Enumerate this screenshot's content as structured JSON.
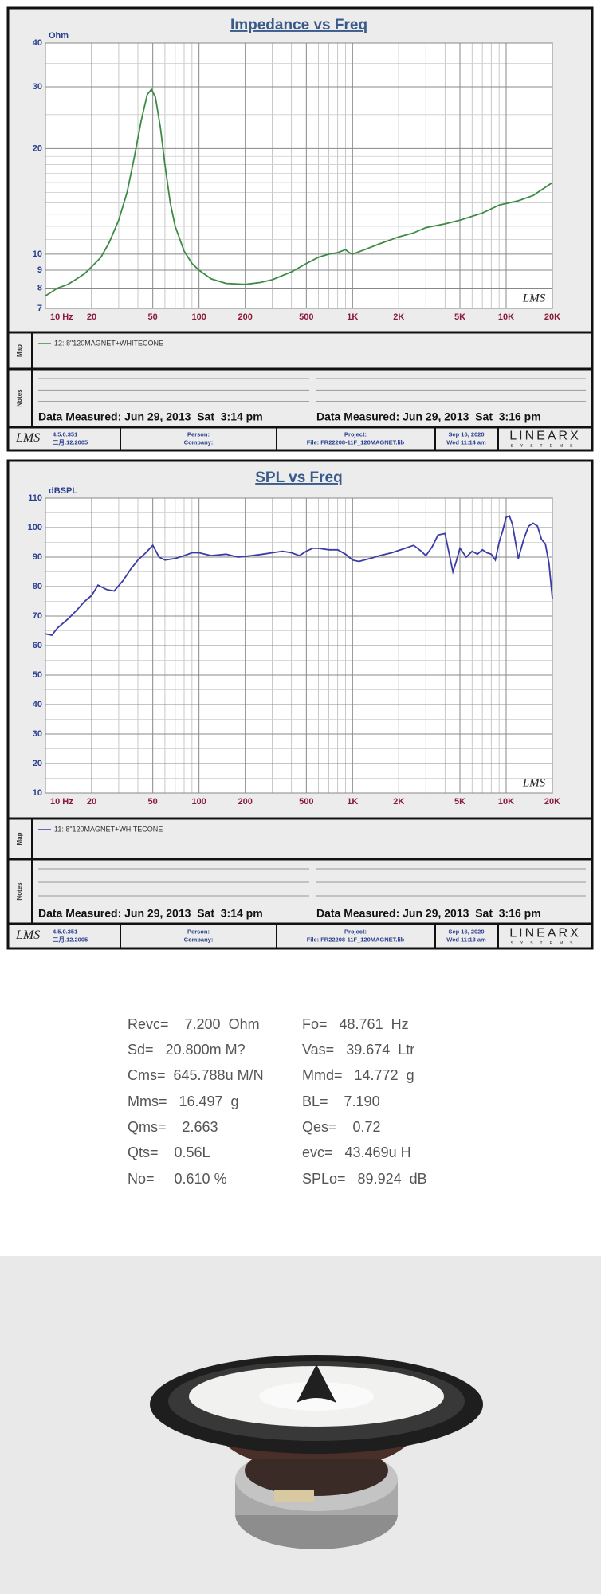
{
  "chart_data": [
    {
      "type": "line",
      "title": "Impedance vs Freq",
      "y_unit": "Ohm",
      "watermark": "LMS",
      "xscale": "log",
      "yscale": "log",
      "grid": true,
      "xlim": [
        10,
        20000
      ],
      "ylim": [
        7,
        40
      ],
      "xticks": [
        {
          "value": 10,
          "label": "10  Hz"
        },
        20,
        50,
        100,
        200,
        500,
        {
          "value": 1000,
          "label": "1K"
        },
        {
          "value": 2000,
          "label": "2K"
        },
        {
          "value": 5000,
          "label": "5K"
        },
        {
          "value": 10000,
          "label": "10K"
        },
        {
          "value": 20000,
          "label": "20K"
        }
      ],
      "minor_xticks": [
        30,
        40,
        60,
        70,
        80,
        90,
        300,
        400,
        600,
        700,
        800,
        900,
        3000,
        4000,
        6000,
        7000,
        8000,
        9000
      ],
      "yticks": [
        7,
        8,
        9,
        10,
        20,
        30,
        40
      ],
      "minor_yticks": [
        11,
        12,
        13,
        14,
        15,
        16,
        17,
        18,
        19,
        25,
        35
      ],
      "x": [
        10,
        12,
        14,
        16,
        18,
        20,
        23,
        26,
        30,
        34,
        38,
        42,
        46,
        49,
        52,
        56,
        60,
        65,
        70,
        80,
        90,
        100,
        120,
        150,
        200,
        250,
        300,
        400,
        500,
        600,
        700,
        800,
        900,
        950,
        1000,
        1200,
        1500,
        2000,
        2500,
        3000,
        4000,
        5000,
        7000,
        9000,
        12000,
        15000,
        20000
      ],
      "series": [
        {
          "name": "12: 8\"120MAGNET+WHITECONE",
          "color": "#3d8a45",
          "values": [
            7.6,
            8.0,
            8.2,
            8.5,
            8.8,
            9.2,
            9.8,
            10.8,
            12.5,
            15,
            19,
            24,
            28.5,
            29.5,
            28,
            23,
            18,
            14,
            12,
            10.2,
            9.4,
            9.0,
            8.5,
            8.25,
            8.2,
            8.3,
            8.45,
            8.9,
            9.4,
            9.8,
            10,
            10.1,
            10.3,
            10.1,
            10.0,
            10.3,
            10.7,
            11.2,
            11.5,
            11.9,
            12.2,
            12.5,
            13.1,
            13.8,
            14.2,
            14.7,
            16.0
          ]
        }
      ],
      "map_label": "Map",
      "notes_label": "Notes",
      "measured": [
        "Data Measured: Jun 29, 2013  Sat  3:14 pm",
        "Data Measured: Jun 29, 2013  Sat  3:16 pm"
      ],
      "footer": {
        "logo": "LMS",
        "version": "4.5.0.351",
        "date": "二月.12.2005",
        "person": "Person:",
        "company": "Company:",
        "project": "Project:",
        "file": "File: FR22208-11F_120MAGNET.lib",
        "stamp": "Sep 16, 2020",
        "time": "Wed 11:14 am",
        "brand": "LINEARX",
        "brand_sub": "SYSTEMS"
      }
    },
    {
      "type": "line",
      "title": "SPL vs Freq",
      "y_unit": "dBSPL",
      "watermark": "LMS",
      "xscale": "log",
      "yscale": "linear",
      "grid": true,
      "xlim": [
        10,
        20000
      ],
      "ylim": [
        10,
        110
      ],
      "xticks": [
        {
          "value": 10,
          "label": "10  Hz"
        },
        20,
        50,
        100,
        200,
        500,
        {
          "value": 1000,
          "label": "1K"
        },
        {
          "value": 2000,
          "label": "2K"
        },
        {
          "value": 5000,
          "label": "5K"
        },
        {
          "value": 10000,
          "label": "10K"
        },
        {
          "value": 20000,
          "label": "20K"
        }
      ],
      "minor_xticks": [
        30,
        40,
        60,
        70,
        80,
        90,
        300,
        400,
        600,
        700,
        800,
        900,
        3000,
        4000,
        6000,
        7000,
        8000,
        9000
      ],
      "yticks": [
        10,
        20,
        30,
        40,
        50,
        60,
        70,
        80,
        90,
        100,
        110
      ],
      "minor_yticks": [
        15,
        25,
        35,
        45,
        55,
        65,
        75,
        85,
        95,
        105
      ],
      "x": [
        10,
        11,
        12,
        14,
        16,
        18,
        20,
        22,
        25,
        28,
        32,
        36,
        40,
        45,
        50,
        55,
        60,
        70,
        80,
        90,
        100,
        120,
        150,
        180,
        220,
        260,
        300,
        350,
        400,
        450,
        500,
        550,
        600,
        700,
        800,
        900,
        1000,
        1100,
        1300,
        1500,
        1800,
        2200,
        2500,
        2800,
        3000,
        3300,
        3600,
        4000,
        4300,
        4500,
        4700,
        5000,
        5500,
        6000,
        6500,
        7000,
        7500,
        8000,
        8500,
        9000,
        9500,
        10000,
        10500,
        11000,
        12000,
        13000,
        14000,
        15000,
        16000,
        17000,
        18000,
        19000,
        20000
      ],
      "series": [
        {
          "name": "11: 8\"120MAGNET+WHITECONE",
          "color": "#3b3ba6",
          "values": [
            64,
            63.5,
            66,
            69,
            72,
            75,
            77,
            80.5,
            79,
            78.5,
            82,
            86,
            89,
            91.5,
            94,
            90,
            89,
            89.5,
            90.5,
            91.5,
            91.5,
            90.5,
            91,
            90,
            90.5,
            91,
            91.5,
            92,
            91.5,
            90.5,
            92,
            93,
            93,
            92.5,
            92.5,
            91,
            89,
            88.5,
            89.5,
            90.5,
            91.5,
            93,
            94,
            92,
            90.5,
            93.5,
            97.5,
            98,
            90,
            85,
            88,
            93,
            90,
            92,
            91,
            92.5,
            91.5,
            91,
            89,
            95,
            99,
            103.5,
            104,
            101,
            89.5,
            96,
            100.5,
            101.5,
            100.5,
            96,
            94.5,
            88,
            76
          ]
        }
      ],
      "map_label": "Map",
      "notes_label": "Notes",
      "measured": [
        "Data Measured: Jun 29, 2013  Sat  3:14 pm",
        "Data Measured: Jun 29, 2013  Sat  3:16 pm"
      ],
      "footer": {
        "logo": "LMS",
        "version": "4.5.0.351",
        "date": "二月.12.2005",
        "person": "Person:",
        "company": "Company:",
        "project": "Project:",
        "file": "File: FR22208-11F_120MAGNET.lib",
        "stamp": "Sep 16, 2020",
        "time": "Wed 11:13 am",
        "brand": "LINEARX",
        "brand_sub": "SYSTEMS"
      }
    }
  ],
  "parameters": [
    [
      "Revc=    7.200  Ohm",
      "Fo=   48.761  Hz"
    ],
    [
      "Sd=   20.800m M?",
      "Vas=   39.674  Ltr"
    ],
    [
      "Cms=  645.788u M/N",
      "Mmd=   14.772  g"
    ],
    [
      "Mms=   16.497  g",
      "BL=    7.190"
    ],
    [
      "Qms=    2.663",
      "Qes=    0.72"
    ],
    [
      "Qts=    0.56L",
      "evc=   43.469u H"
    ],
    [
      "No=     0.610 %",
      "SPLo=   89.924  dB"
    ]
  ]
}
